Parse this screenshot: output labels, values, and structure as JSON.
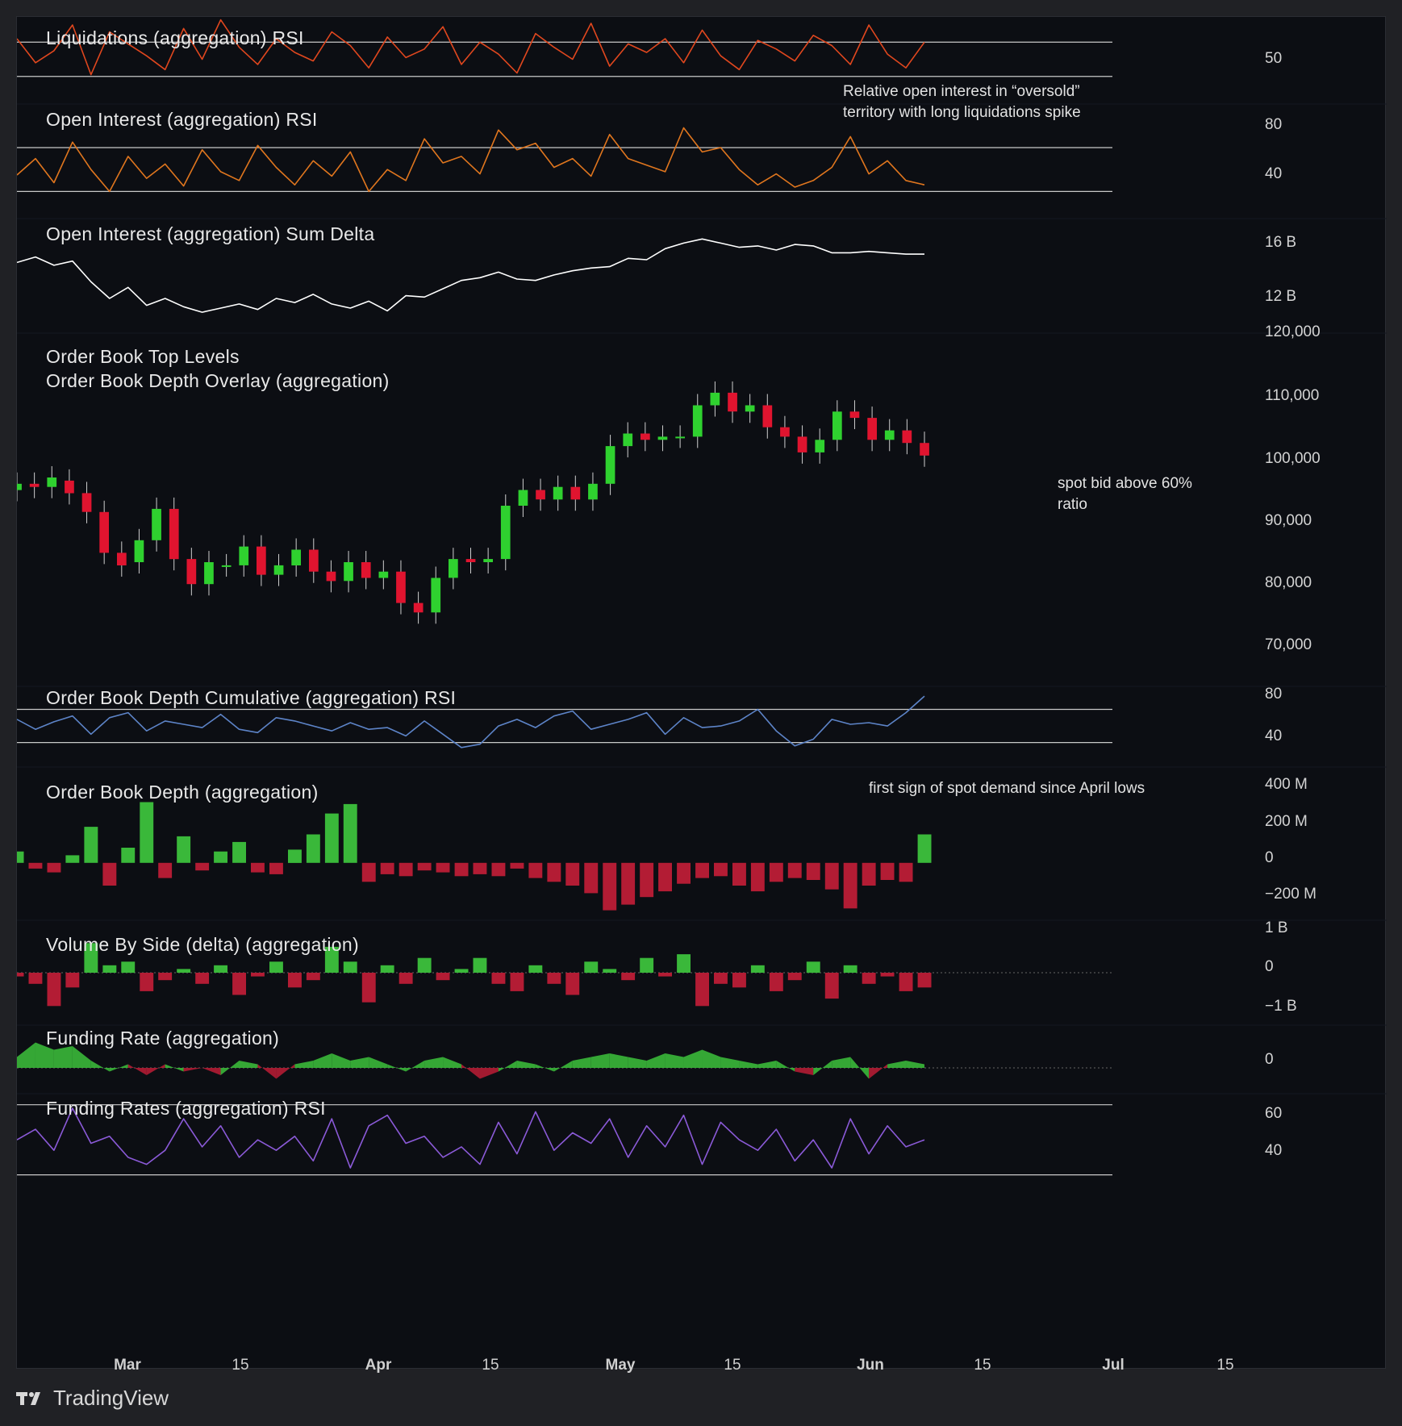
{
  "brand": {
    "name": "TradingView",
    "logo_icon": "tradingview-logo-icon"
  },
  "colors": {
    "background": "#0c0e13",
    "up": "#2fd12f",
    "down": "#e0142f",
    "bar_up": "#3ab83a",
    "bar_down": "#b31c34",
    "liq_rsi": "#e0471e",
    "oi_rsi": "#e0761e",
    "oi_delta": "#ffffff",
    "depth_rsi": "#5d84c8",
    "funding_rsi": "#8b5ad8"
  },
  "time_axis": {
    "labels": [
      {
        "text": "Mar",
        "major": true
      },
      {
        "text": "15",
        "major": false
      },
      {
        "text": "Apr",
        "major": true
      },
      {
        "text": "15",
        "major": false
      },
      {
        "text": "May",
        "major": true
      },
      {
        "text": "15",
        "major": false
      },
      {
        "text": "Jun",
        "major": true
      },
      {
        "text": "15",
        "major": false
      },
      {
        "text": "Jul",
        "major": true
      },
      {
        "text": "15",
        "major": false
      }
    ]
  },
  "annotations": {
    "oi_note": "Relative open interest in “oversold” territory with long liquidations spike",
    "spot_bid_note": "spot bid above 60% ratio",
    "spot_demand_note": "first sign of spot demand since April lows"
  },
  "chart_data": [
    {
      "type": "line",
      "title": "Liquidations (aggregation) RSI",
      "y_ticks": [
        "50"
      ],
      "bands": [
        60,
        40
      ],
      "ylim": [
        30,
        70
      ],
      "x_range": [
        "Feb 17",
        "Jun 24"
      ],
      "series": [
        {
          "values": [
            62,
            48,
            55,
            70,
            41,
            66,
            59,
            52,
            44,
            68,
            50,
            73,
            57,
            47,
            62,
            54,
            49,
            66,
            58,
            45,
            63,
            51,
            56,
            69,
            47,
            60,
            53,
            42,
            65,
            57,
            50,
            71,
            46,
            59,
            54,
            62,
            48,
            67,
            52,
            44,
            61,
            56,
            49,
            64,
            58,
            47,
            70,
            53,
            45,
            60
          ]
        }
      ]
    },
    {
      "type": "line",
      "title": "Open Interest (aggregation) RSI",
      "y_ticks": [
        "80",
        "40"
      ],
      "bands": [
        70,
        30
      ],
      "ylim": [
        20,
        95
      ],
      "x_range": [
        "Feb 17",
        "Jun 24"
      ],
      "series": [
        {
          "values": [
            45,
            60,
            38,
            75,
            50,
            30,
            62,
            42,
            55,
            35,
            68,
            48,
            40,
            72,
            52,
            36,
            58,
            44,
            66,
            30,
            50,
            40,
            78,
            56,
            62,
            46,
            86,
            68,
            74,
            52,
            60,
            44,
            82,
            60,
            54,
            48,
            88,
            66,
            70,
            50,
            36,
            46,
            34,
            40,
            52,
            80,
            46,
            58,
            40,
            36
          ]
        }
      ]
    },
    {
      "type": "line",
      "title": "Open Interest (aggregation) Sum Delta",
      "y_ticks": [
        "16 B",
        "12 B"
      ],
      "ylim": [
        10.5,
        17.5
      ],
      "x_range": [
        "Feb 17",
        "Jun 24"
      ],
      "series": [
        {
          "values": [
            15.2,
            15.6,
            15.0,
            15.3,
            13.8,
            12.6,
            13.4,
            12.1,
            12.6,
            12.0,
            11.6,
            11.9,
            12.2,
            11.8,
            12.6,
            12.3,
            12.9,
            12.2,
            11.9,
            12.4,
            11.7,
            12.8,
            12.7,
            13.3,
            13.9,
            14.1,
            14.5,
            14.0,
            13.9,
            14.3,
            14.6,
            14.8,
            14.9,
            15.5,
            15.4,
            16.2,
            16.6,
            16.9,
            16.6,
            16.3,
            16.4,
            16.1,
            16.5,
            16.4,
            15.9,
            15.9,
            16.0,
            15.9,
            15.8,
            15.8
          ]
        }
      ]
    },
    {
      "type": "candlestick",
      "title": "Order Book Top Levels",
      "subtitle": "Order Book Depth Overlay (aggregation)",
      "y_ticks": [
        "120,000",
        "110,000",
        "100,000",
        "90,000",
        "80,000",
        "70,000"
      ],
      "ylim": [
        66000,
        121000
      ],
      "x_range": [
        "Feb 17",
        "Jun 24"
      ],
      "series": [
        {
          "closes": [
            97000,
            96500,
            98000,
            95500,
            92500,
            86000,
            84000,
            88000,
            93000,
            85000,
            81000,
            84500,
            84000,
            87000,
            82500,
            84000,
            86500,
            83000,
            81500,
            84500,
            82000,
            83000,
            78000,
            76500,
            82000,
            85000,
            84500,
            85000,
            93500,
            96000,
            94500,
            96500,
            94500,
            97000,
            103000,
            105000,
            104000,
            104500,
            104500,
            109500,
            111500,
            108500,
            109500,
            106000,
            104500,
            102000,
            104000,
            108500,
            107500,
            104000,
            105500,
            103500,
            101500
          ]
        }
      ],
      "opens": [
        96000,
        97000,
        96500,
        97500,
        95500,
        92500,
        86000,
        84500,
        88000,
        93000,
        85000,
        81000,
        84000,
        84000,
        87000,
        82500,
        84000,
        86500,
        83000,
        81500,
        84500,
        82000,
        83000,
        78000,
        76500,
        82000,
        85000,
        84500,
        85000,
        93500,
        96000,
        94500,
        96500,
        94500,
        97000,
        103000,
        105000,
        104000,
        104500,
        104500,
        109500,
        111500,
        108500,
        109500,
        106000,
        104500,
        102000,
        104000,
        108500,
        107500,
        104000,
        105500,
        103500
      ]
    },
    {
      "type": "line",
      "title": "Order Book Depth Cumulative (aggregation) RSI",
      "y_ticks": [
        "80",
        "40"
      ],
      "bands": [
        70,
        30
      ],
      "ylim": [
        15,
        90
      ],
      "x_range": [
        "Feb 17",
        "Jun 24"
      ],
      "series": [
        {
          "values": [
            58,
            46,
            55,
            62,
            40,
            60,
            66,
            44,
            56,
            52,
            48,
            64,
            46,
            42,
            60,
            56,
            50,
            44,
            54,
            46,
            48,
            38,
            56,
            40,
            24,
            28,
            50,
            58,
            48,
            62,
            68,
            46,
            52,
            58,
            66,
            40,
            60,
            48,
            50,
            56,
            70,
            44,
            26,
            34,
            58,
            52,
            54,
            50,
            66,
            86
          ]
        }
      ]
    },
    {
      "type": "bar",
      "title": "Order Book Depth (aggregation)",
      "y_ticks": [
        "400 M",
        "200 M",
        "0",
        "−200 M"
      ],
      "ylim": [
        -260,
        420
      ],
      "x_range": [
        "Feb 17",
        "Jun 24"
      ],
      "series": [
        {
          "values": [
            60,
            -30,
            -50,
            40,
            190,
            -120,
            80,
            320,
            -80,
            140,
            -40,
            60,
            110,
            -50,
            -60,
            70,
            150,
            260,
            310,
            -100,
            -60,
            -70,
            -40,
            -50,
            -70,
            -60,
            -70,
            -30,
            -80,
            -100,
            -120,
            -160,
            -250,
            -220,
            -180,
            -150,
            -110,
            -80,
            -70,
            -120,
            -150,
            -100,
            -80,
            -90,
            -140,
            -240,
            -120,
            -90,
            -100,
            150
          ]
        }
      ]
    },
    {
      "type": "bar",
      "title": "Volume By Side (delta) (aggregation)",
      "y_ticks": [
        "1 B",
        "0",
        "−1 B"
      ],
      "ylim": [
        -1.2,
        1.2
      ],
      "x_range": [
        "Feb 17",
        "Jun 24"
      ],
      "series": [
        {
          "values": [
            -0.1,
            -0.3,
            -0.9,
            -0.4,
            0.8,
            0.2,
            0.3,
            -0.5,
            -0.2,
            0.1,
            -0.3,
            0.2,
            -0.6,
            -0.1,
            0.3,
            -0.4,
            -0.2,
            0.7,
            0.3,
            -0.8,
            0.2,
            -0.3,
            0.4,
            -0.2,
            0.1,
            0.4,
            -0.3,
            -0.5,
            0.2,
            -0.3,
            -0.6,
            0.3,
            0.1,
            -0.2,
            0.4,
            -0.1,
            0.5,
            -0.9,
            -0.3,
            -0.4,
            0.2,
            -0.5,
            -0.2,
            0.3,
            -0.7,
            0.2,
            -0.3,
            -0.1,
            -0.5,
            -0.4
          ]
        }
      ]
    },
    {
      "type": "area",
      "title": "Funding Rate (aggregation)",
      "y_ticks": [
        "0"
      ],
      "ylim": [
        -0.6,
        1.0
      ],
      "x_range": [
        "Feb 17",
        "Jun 24"
      ],
      "series": [
        {
          "values": [
            0.3,
            0.7,
            0.5,
            0.6,
            0.2,
            -0.1,
            0.1,
            -0.2,
            0.1,
            -0.1,
            0.0,
            -0.2,
            0.2,
            0.1,
            -0.3,
            0.1,
            0.2,
            0.4,
            0.2,
            0.3,
            0.1,
            -0.1,
            0.2,
            0.3,
            0.1,
            -0.3,
            -0.1,
            0.2,
            0.1,
            -0.1,
            0.2,
            0.3,
            0.4,
            0.3,
            0.2,
            0.4,
            0.3,
            0.5,
            0.3,
            0.2,
            0.1,
            0.2,
            -0.1,
            -0.2,
            0.2,
            0.3,
            -0.3,
            0.1,
            0.2,
            0.1
          ]
        }
      ]
    },
    {
      "type": "line",
      "title": "Funding Rates (aggregation) RSI",
      "y_ticks": [
        "60",
        "40"
      ],
      "bands": [
        70,
        30
      ],
      "ylim": [
        28,
        74
      ],
      "x_range": [
        "Feb 17",
        "Jun 24"
      ],
      "series": [
        {
          "values": [
            50,
            56,
            44,
            68,
            48,
            52,
            40,
            36,
            44,
            62,
            46,
            58,
            40,
            50,
            44,
            52,
            38,
            62,
            34,
            58,
            64,
            48,
            52,
            40,
            46,
            36,
            60,
            42,
            66,
            44,
            54,
            48,
            62,
            40,
            58,
            46,
            64,
            36,
            60,
            50,
            44,
            56,
            38,
            50,
            34,
            62,
            42,
            58,
            46,
            50
          ]
        }
      ]
    }
  ]
}
